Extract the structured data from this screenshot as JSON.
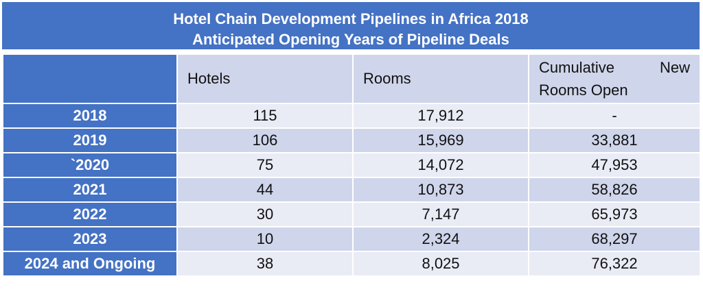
{
  "title": {
    "line1": "Hotel Chain Development Pipelines in Africa 2018",
    "line2": "Anticipated Opening Years of Pipeline Deals"
  },
  "headers": {
    "hotels": "Hotels",
    "rooms": "Rooms",
    "cumulative_word1": "Cumulative",
    "cumulative_word2": "New",
    "cumulative_line2": "Rooms Open"
  },
  "rows": [
    {
      "year": "2018",
      "hotels": "115",
      "rooms": "17,912",
      "cumulative": "-"
    },
    {
      "year": "2019",
      "hotels": "106",
      "rooms": "15,969",
      "cumulative": "33,881"
    },
    {
      "year": "`2020",
      "hotels": "75",
      "rooms": "14,072",
      "cumulative": "47,953"
    },
    {
      "year": "2021",
      "hotels": "44",
      "rooms": "10,873",
      "cumulative": "58,826"
    },
    {
      "year": "2022",
      "hotels": "30",
      "rooms": "7,147",
      "cumulative": "65,973"
    },
    {
      "year": "2023",
      "hotels": "10",
      "rooms": "2,324",
      "cumulative": "68,297"
    },
    {
      "year": "2024 and Ongoing",
      "hotels": "38",
      "rooms": "8,025",
      "cumulative": "76,322"
    }
  ],
  "colors": {
    "header_blue": "#4472c4",
    "band_dark": "#cfd5ea",
    "band_light": "#e9ebf5"
  }
}
